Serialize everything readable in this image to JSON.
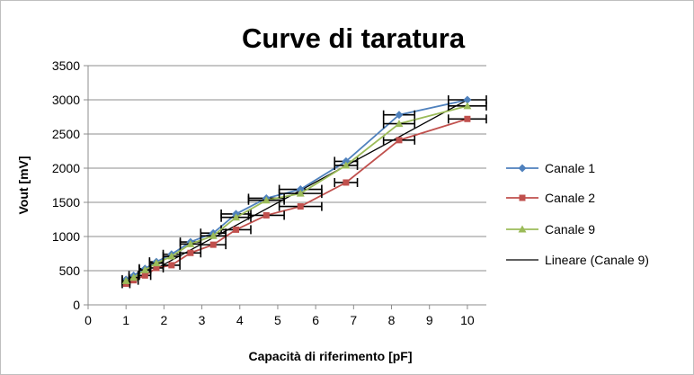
{
  "chart_data": {
    "type": "scatter",
    "title": "Curve di taratura",
    "xlabel": "Capacità di riferimento [pF]",
    "ylabel": "Vout [mV]",
    "xlim": [
      0,
      10.5
    ],
    "ylim": [
      0,
      3500
    ],
    "xticks": [
      0,
      1,
      2,
      3,
      4,
      5,
      6,
      7,
      8,
      9,
      10
    ],
    "yticks": [
      0,
      500,
      1000,
      1500,
      2000,
      2500,
      3000,
      3500
    ],
    "grid": "horizontal",
    "legend_position": "right",
    "series": [
      {
        "name": "Canale 1",
        "color": "#4f81bd",
        "marker": "diamond",
        "x": [
          1.0,
          1.2,
          1.5,
          1.8,
          2.2,
          2.7,
          3.3,
          3.9,
          4.7,
          5.6,
          6.8,
          8.2,
          10.0
        ],
        "y": [
          370,
          430,
          530,
          630,
          740,
          920,
          1050,
          1330,
          1560,
          1690,
          2100,
          2780,
          3000
        ],
        "xerr": [
          0.1,
          0.12,
          0.15,
          0.18,
          0.22,
          0.27,
          0.33,
          0.39,
          0.47,
          0.56,
          0.3,
          0.41,
          0.5
        ]
      },
      {
        "name": "Canale 2",
        "color": "#c0504d",
        "marker": "square",
        "x": [
          1.0,
          1.2,
          1.5,
          1.8,
          2.2,
          2.7,
          3.3,
          3.9,
          4.7,
          5.6,
          6.8,
          8.2,
          10.0
        ],
        "y": [
          310,
          360,
          430,
          540,
          580,
          760,
          880,
          1100,
          1310,
          1440,
          1790,
          2410,
          2720
        ],
        "xerr": [
          0.1,
          0.12,
          0.15,
          0.18,
          0.22,
          0.27,
          0.33,
          0.39,
          0.47,
          0.56,
          0.3,
          0.41,
          0.5
        ]
      },
      {
        "name": "Canale 9",
        "color": "#9bbb59",
        "marker": "triangle",
        "x": [
          1.0,
          1.2,
          1.5,
          1.8,
          2.2,
          2.7,
          3.3,
          3.9,
          4.7,
          5.6,
          6.8,
          8.2,
          10.0
        ],
        "y": [
          350,
          400,
          510,
          610,
          710,
          890,
          1010,
          1280,
          1530,
          1630,
          2040,
          2650,
          2910
        ],
        "xerr": [
          0.1,
          0.12,
          0.15,
          0.18,
          0.22,
          0.27,
          0.33,
          0.39,
          0.47,
          0.56,
          0.3,
          0.41,
          0.5
        ]
      }
    ],
    "trendline": {
      "name": "Lineare (Canale 9)",
      "color": "#000000",
      "x": [
        1.0,
        10.0
      ],
      "y": [
        290,
        3000
      ]
    }
  }
}
